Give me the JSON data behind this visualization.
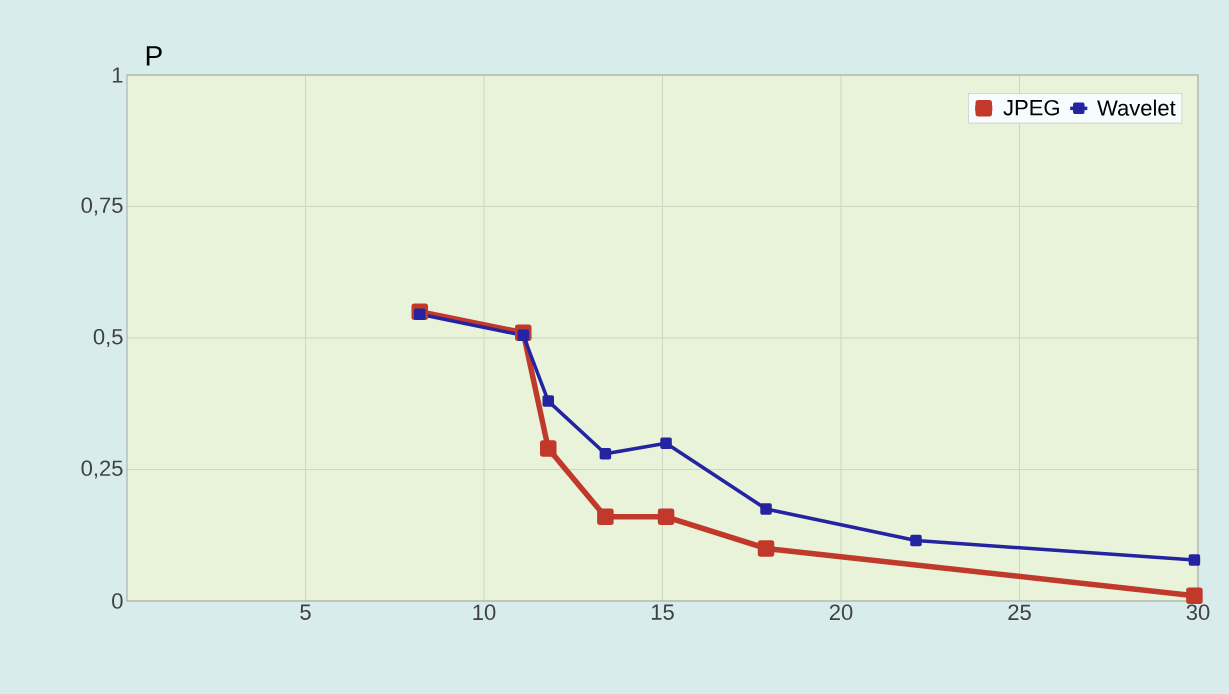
{
  "chart_data": {
    "type": "line",
    "ylabel": "P",
    "xlim": [
      0,
      30
    ],
    "xticks": [
      5,
      10,
      15,
      20,
      25,
      30
    ],
    "ylim": [
      0,
      1
    ],
    "yticks": [
      {
        "value": 0,
        "label": "0"
      },
      {
        "value": 0.25,
        "label": "0,25"
      },
      {
        "value": 0.5,
        "label": "0,5"
      },
      {
        "value": 0.75,
        "label": "0,75"
      },
      {
        "value": 1,
        "label": "1"
      }
    ],
    "grid": true,
    "legend": "top right",
    "marker": "square",
    "line_style": "solid",
    "series": [
      {
        "name": "JPEG",
        "color": "#c0392b",
        "x": [
          8.2,
          11.1,
          11.8,
          13.4,
          15.1,
          17.9,
          29.9
        ],
        "values": [
          0.55,
          0.51,
          0.29,
          0.16,
          0.16,
          0.1,
          0.01
        ]
      },
      {
        "name": "Wavelet",
        "color": "#2424a0",
        "x": [
          8.2,
          11.1,
          11.8,
          13.4,
          15.1,
          17.9,
          22.1,
          29.9
        ],
        "values": [
          0.545,
          0.505,
          0.38,
          0.28,
          0.3,
          0.175,
          0.115,
          0.078
        ]
      }
    ]
  }
}
